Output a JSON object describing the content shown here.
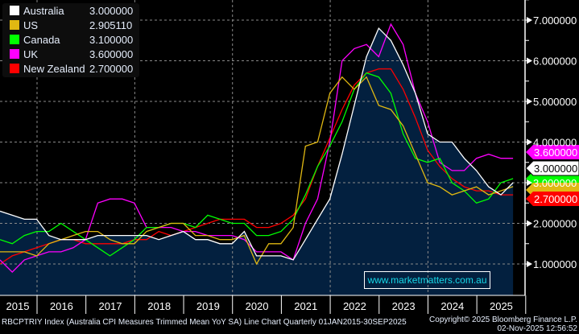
{
  "chart_data": {
    "type": "line",
    "title": "RBCPTRIY Index (Australia CPI Measures Trimmed Mean YoY SA) Line Chart Quarterly 01JAN2015-30SEP2025",
    "xlabel": "",
    "ylabel": "",
    "x_ticks": [
      "2015",
      "2016",
      "2017",
      "2018",
      "2019",
      "2020",
      "2021",
      "2022",
      "2023",
      "2024",
      "2025"
    ],
    "y_ticks": [
      "1.000000",
      "2.000000",
      "3.000000",
      "4.000000",
      "5.000000",
      "6.000000",
      "7.000000"
    ],
    "ylim": [
      0.2,
      7.5
    ],
    "grid": true,
    "legend_position": "top-left",
    "series": [
      {
        "name": "Australia",
        "last": "3.000000",
        "color": "#ffffff",
        "values": [
          2.3,
          2.2,
          2.1,
          2.1,
          1.7,
          1.6,
          1.6,
          1.6,
          1.7,
          1.7,
          1.7,
          1.7,
          1.7,
          1.6,
          1.7,
          1.8,
          1.6,
          1.6,
          1.5,
          1.5,
          1.8,
          1.2,
          1.2,
          1.2,
          1.1,
          1.6,
          2.1,
          2.6,
          3.7,
          4.9,
          6.1,
          6.8,
          6.5,
          5.9,
          5.2,
          4.2,
          4.0,
          4.0,
          3.6,
          3.3,
          2.9,
          2.7,
          3.0
        ]
      },
      {
        "name": "US",
        "last": "2.905110",
        "color": "#e0b812",
        "values": [
          1.3,
          1.3,
          1.3,
          1.2,
          1.5,
          1.6,
          1.7,
          1.8,
          1.8,
          1.6,
          1.5,
          1.5,
          1.8,
          1.9,
          2.0,
          2.0,
          1.7,
          1.7,
          1.6,
          1.6,
          1.7,
          1.0,
          1.5,
          1.5,
          1.9,
          3.9,
          4.0,
          5.2,
          5.6,
          5.3,
          5.6,
          4.9,
          4.8,
          4.4,
          3.7,
          3.0,
          2.9,
          2.7,
          2.8,
          2.9,
          2.7,
          2.8,
          2.905
        ]
      },
      {
        "name": "Canada",
        "last": "3.100000",
        "color": "#00ff00",
        "values": [
          1.6,
          1.5,
          1.7,
          1.8,
          1.8,
          2.0,
          1.8,
          1.6,
          1.4,
          1.2,
          1.4,
          1.6,
          1.9,
          1.9,
          2.0,
          2.0,
          1.9,
          2.2,
          2.1,
          2.0,
          2.0,
          1.7,
          1.7,
          1.8,
          2.1,
          2.7,
          3.4,
          3.9,
          4.5,
          5.3,
          5.7,
          5.6,
          5.2,
          4.2,
          3.6,
          3.5,
          3.6,
          3.0,
          2.8,
          2.5,
          2.6,
          3.0,
          3.1
        ]
      },
      {
        "name": "UK",
        "last": "3.600000",
        "color": "#ff00ff",
        "values": [
          1.1,
          0.8,
          1.1,
          1.2,
          1.3,
          1.3,
          1.4,
          1.6,
          2.5,
          2.6,
          2.6,
          2.5,
          1.9,
          1.9,
          1.9,
          1.8,
          1.8,
          1.7,
          1.7,
          1.7,
          1.6,
          1.3,
          1.3,
          1.3,
          1.1,
          2.0,
          2.6,
          4.0,
          6.0,
          6.3,
          6.4,
          6.1,
          6.9,
          6.4,
          5.2,
          4.5,
          3.5,
          3.3,
          3.3,
          3.6,
          3.7,
          3.6,
          3.6
        ]
      },
      {
        "name": "New Zealand",
        "last": "2.700000",
        "color": "#ff0000",
        "values": [
          1.0,
          1.2,
          1.3,
          1.4,
          1.5,
          1.6,
          1.6,
          1.5,
          1.5,
          1.5,
          1.5,
          1.6,
          1.6,
          1.8,
          1.7,
          1.8,
          1.9,
          2.0,
          2.1,
          2.1,
          2.1,
          1.9,
          1.9,
          2.0,
          2.2,
          2.6,
          3.4,
          4.1,
          4.8,
          5.4,
          5.7,
          5.8,
          5.8,
          5.3,
          4.6,
          3.8,
          3.4,
          3.1,
          2.9,
          2.8,
          2.8,
          2.7,
          2.7
        ]
      }
    ]
  },
  "watermark": "www.marketmatters.com.au",
  "footer": {
    "left": "RBCPTRIY Index (Australia CPI Measures Trimmed Mean YoY SA) Line Chart Quarterly 01JAN2015-30SEP2025",
    "copyright": "Copyright© 2025 Bloomberg Finance L.P.",
    "timestamp": "02-Nov-2025 12:56:52"
  },
  "colors": {
    "area_fill": "#03203f",
    "background": "#000000",
    "grid": "#8a8a8a"
  }
}
